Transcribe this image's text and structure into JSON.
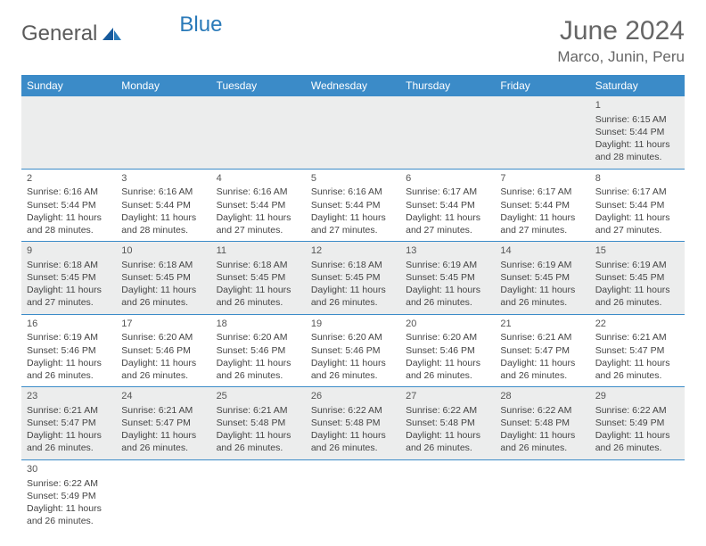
{
  "logo": {
    "text_prefix": "General",
    "text_suffix": "Blue"
  },
  "title": "June 2024",
  "location": "Marco, Junin, Peru",
  "colors": {
    "header_bg": "#3b8bc8",
    "header_text": "#ffffff",
    "row_border": "#3b8bc8",
    "shaded_bg": "#eceded",
    "logo_gray": "#5a5a5a",
    "logo_blue": "#2a7ab9",
    "title_color": "#666666"
  },
  "typography": {
    "month_title_pt": 30,
    "location_pt": 17,
    "dayheader_pt": 12,
    "cell_pt": 10.5
  },
  "day_headers": [
    "Sunday",
    "Monday",
    "Tuesday",
    "Wednesday",
    "Thursday",
    "Friday",
    "Saturday"
  ],
  "weeks": [
    {
      "shaded": true,
      "days": [
        null,
        null,
        null,
        null,
        null,
        null,
        {
          "n": "1",
          "sr": "6:15 AM",
          "ss": "5:44 PM",
          "dl": "11 hours and 28 minutes."
        }
      ]
    },
    {
      "shaded": false,
      "days": [
        {
          "n": "2",
          "sr": "6:16 AM",
          "ss": "5:44 PM",
          "dl": "11 hours and 28 minutes."
        },
        {
          "n": "3",
          "sr": "6:16 AM",
          "ss": "5:44 PM",
          "dl": "11 hours and 28 minutes."
        },
        {
          "n": "4",
          "sr": "6:16 AM",
          "ss": "5:44 PM",
          "dl": "11 hours and 27 minutes."
        },
        {
          "n": "5",
          "sr": "6:16 AM",
          "ss": "5:44 PM",
          "dl": "11 hours and 27 minutes."
        },
        {
          "n": "6",
          "sr": "6:17 AM",
          "ss": "5:44 PM",
          "dl": "11 hours and 27 minutes."
        },
        {
          "n": "7",
          "sr": "6:17 AM",
          "ss": "5:44 PM",
          "dl": "11 hours and 27 minutes."
        },
        {
          "n": "8",
          "sr": "6:17 AM",
          "ss": "5:44 PM",
          "dl": "11 hours and 27 minutes."
        }
      ]
    },
    {
      "shaded": true,
      "days": [
        {
          "n": "9",
          "sr": "6:18 AM",
          "ss": "5:45 PM",
          "dl": "11 hours and 27 minutes."
        },
        {
          "n": "10",
          "sr": "6:18 AM",
          "ss": "5:45 PM",
          "dl": "11 hours and 26 minutes."
        },
        {
          "n": "11",
          "sr": "6:18 AM",
          "ss": "5:45 PM",
          "dl": "11 hours and 26 minutes."
        },
        {
          "n": "12",
          "sr": "6:18 AM",
          "ss": "5:45 PM",
          "dl": "11 hours and 26 minutes."
        },
        {
          "n": "13",
          "sr": "6:19 AM",
          "ss": "5:45 PM",
          "dl": "11 hours and 26 minutes."
        },
        {
          "n": "14",
          "sr": "6:19 AM",
          "ss": "5:45 PM",
          "dl": "11 hours and 26 minutes."
        },
        {
          "n": "15",
          "sr": "6:19 AM",
          "ss": "5:45 PM",
          "dl": "11 hours and 26 minutes."
        }
      ]
    },
    {
      "shaded": false,
      "days": [
        {
          "n": "16",
          "sr": "6:19 AM",
          "ss": "5:46 PM",
          "dl": "11 hours and 26 minutes."
        },
        {
          "n": "17",
          "sr": "6:20 AM",
          "ss": "5:46 PM",
          "dl": "11 hours and 26 minutes."
        },
        {
          "n": "18",
          "sr": "6:20 AM",
          "ss": "5:46 PM",
          "dl": "11 hours and 26 minutes."
        },
        {
          "n": "19",
          "sr": "6:20 AM",
          "ss": "5:46 PM",
          "dl": "11 hours and 26 minutes."
        },
        {
          "n": "20",
          "sr": "6:20 AM",
          "ss": "5:46 PM",
          "dl": "11 hours and 26 minutes."
        },
        {
          "n": "21",
          "sr": "6:21 AM",
          "ss": "5:47 PM",
          "dl": "11 hours and 26 minutes."
        },
        {
          "n": "22",
          "sr": "6:21 AM",
          "ss": "5:47 PM",
          "dl": "11 hours and 26 minutes."
        }
      ]
    },
    {
      "shaded": true,
      "days": [
        {
          "n": "23",
          "sr": "6:21 AM",
          "ss": "5:47 PM",
          "dl": "11 hours and 26 minutes."
        },
        {
          "n": "24",
          "sr": "6:21 AM",
          "ss": "5:47 PM",
          "dl": "11 hours and 26 minutes."
        },
        {
          "n": "25",
          "sr": "6:21 AM",
          "ss": "5:48 PM",
          "dl": "11 hours and 26 minutes."
        },
        {
          "n": "26",
          "sr": "6:22 AM",
          "ss": "5:48 PM",
          "dl": "11 hours and 26 minutes."
        },
        {
          "n": "27",
          "sr": "6:22 AM",
          "ss": "5:48 PM",
          "dl": "11 hours and 26 minutes."
        },
        {
          "n": "28",
          "sr": "6:22 AM",
          "ss": "5:48 PM",
          "dl": "11 hours and 26 minutes."
        },
        {
          "n": "29",
          "sr": "6:22 AM",
          "ss": "5:49 PM",
          "dl": "11 hours and 26 minutes."
        }
      ]
    },
    {
      "shaded": false,
      "last": true,
      "days": [
        {
          "n": "30",
          "sr": "6:22 AM",
          "ss": "5:49 PM",
          "dl": "11 hours and 26 minutes."
        },
        null,
        null,
        null,
        null,
        null,
        null
      ]
    }
  ],
  "labels": {
    "sunrise": "Sunrise: ",
    "sunset": "Sunset: ",
    "daylight": "Daylight: "
  }
}
